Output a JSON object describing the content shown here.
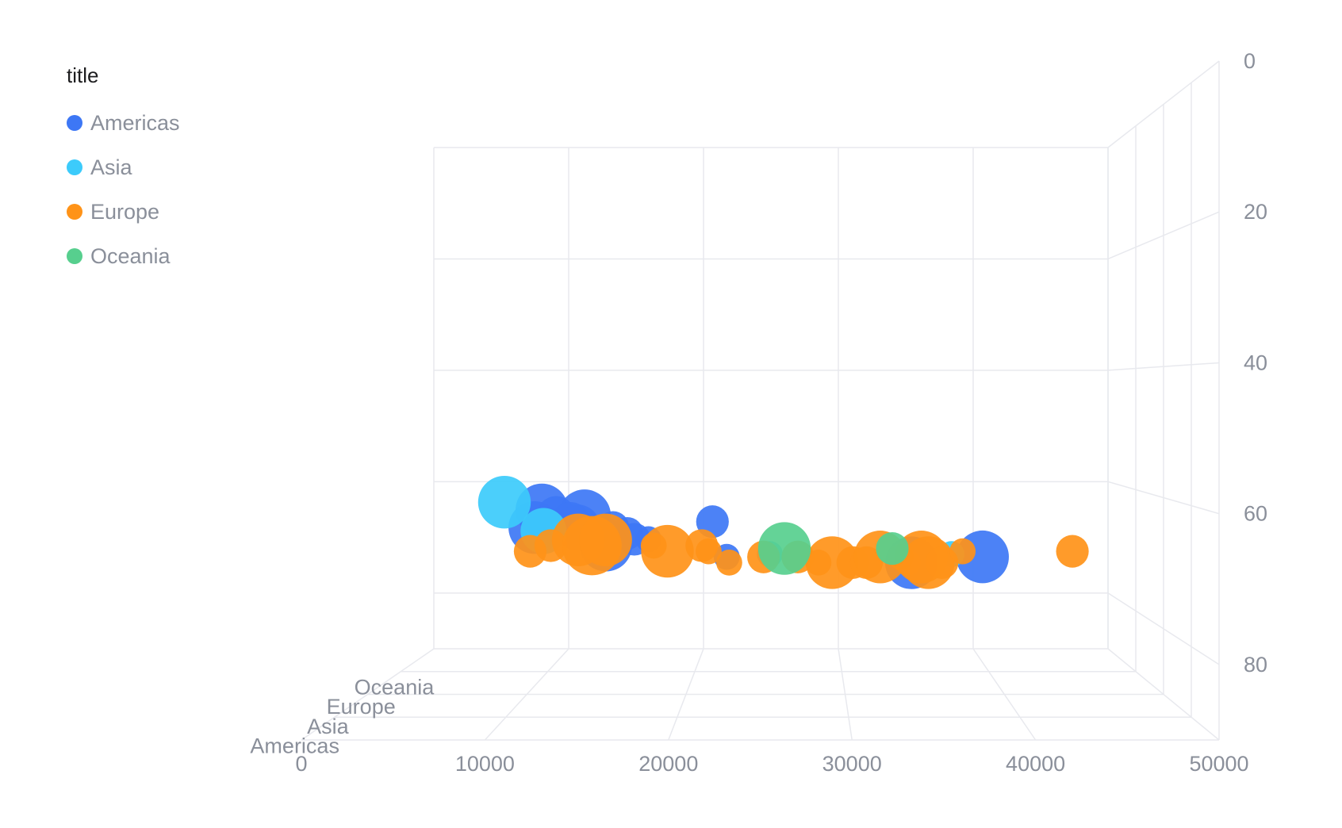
{
  "legend": {
    "title": "title",
    "items": [
      {
        "name": "Americas",
        "color": "#3d77f5"
      },
      {
        "name": "Asia",
        "color": "#3ccbfb"
      },
      {
        "name": "Europe",
        "color": "#ff9318"
      },
      {
        "name": "Oceania",
        "color": "#57cf8e"
      }
    ]
  },
  "chart_data": {
    "type": "scatter",
    "title": "",
    "x_axis": {
      "label": "",
      "range": [
        0,
        50000
      ],
      "ticks": [
        0,
        10000,
        20000,
        30000,
        40000,
        50000
      ]
    },
    "y_axis": {
      "label": "",
      "range": [
        0,
        90
      ],
      "ticks": [
        0,
        20,
        40,
        60,
        80
      ],
      "reversed": true
    },
    "z_axis": {
      "label": "",
      "categories": [
        "Americas",
        "Asia",
        "Europe",
        "Oceania"
      ]
    },
    "size_field": "population",
    "series": [
      {
        "name": "Americas",
        "color": "#3d77f5",
        "points": [
          {
            "x": 9000,
            "y": 64,
            "size": 6
          },
          {
            "x": 8500,
            "y": 67,
            "size": 6
          },
          {
            "x": 12000,
            "y": 65,
            "size": 6
          },
          {
            "x": 11500,
            "y": 67,
            "size": 5
          },
          {
            "x": 10000,
            "y": 65,
            "size": 4
          },
          {
            "x": 11000,
            "y": 66,
            "size": 4
          },
          {
            "x": 14000,
            "y": 67,
            "size": 3
          },
          {
            "x": 15000,
            "y": 68,
            "size": 3
          },
          {
            "x": 13500,
            "y": 70,
            "size": 6
          },
          {
            "x": 15500,
            "y": 69,
            "size": 3
          },
          {
            "x": 16500,
            "y": 69,
            "size": 2
          },
          {
            "x": 14000,
            "y": 69,
            "size": 2
          },
          {
            "x": 13000,
            "y": 70,
            "size": 2
          },
          {
            "x": 21000,
            "y": 66,
            "size": 3
          },
          {
            "x": 22000,
            "y": 72,
            "size": 2
          },
          {
            "x": 35000,
            "y": 73,
            "size": 6
          },
          {
            "x": 40000,
            "y": 72,
            "size": 6
          }
        ]
      },
      {
        "name": "Asia",
        "color": "#3ccbfb",
        "points": [
          {
            "x": 6000,
            "y": 63,
            "size": 6
          },
          {
            "x": 8800,
            "y": 68,
            "size": 5
          },
          {
            "x": 25000,
            "y": 72,
            "size": 2
          },
          {
            "x": 38000,
            "y": 72,
            "size": 2
          }
        ]
      },
      {
        "name": "Europe",
        "color": "#ff9318",
        "points": [
          {
            "x": 7500,
            "y": 72,
            "size": 3
          },
          {
            "x": 9000,
            "y": 71,
            "size": 3
          },
          {
            "x": 11000,
            "y": 70,
            "size": 6
          },
          {
            "x": 12000,
            "y": 71,
            "size": 7
          },
          {
            "x": 13000,
            "y": 70,
            "size": 6
          },
          {
            "x": 16500,
            "y": 71,
            "size": 2
          },
          {
            "x": 17500,
            "y": 72,
            "size": 6
          },
          {
            "x": 20000,
            "y": 71,
            "size": 3
          },
          {
            "x": 20500,
            "y": 72,
            "size": 2
          },
          {
            "x": 22000,
            "y": 74,
            "size": 2
          },
          {
            "x": 24500,
            "y": 73,
            "size": 3
          },
          {
            "x": 27000,
            "y": 73,
            "size": 3
          },
          {
            "x": 28500,
            "y": 74,
            "size": 2
          },
          {
            "x": 29500,
            "y": 74,
            "size": 6
          },
          {
            "x": 31000,
            "y": 74,
            "size": 3
          },
          {
            "x": 32000,
            "y": 74,
            "size": 3
          },
          {
            "x": 33000,
            "y": 73,
            "size": 6
          },
          {
            "x": 34500,
            "y": 73,
            "size": 2
          },
          {
            "x": 35000,
            "y": 74,
            "size": 2
          },
          {
            "x": 36000,
            "y": 73,
            "size": 6
          },
          {
            "x": 36500,
            "y": 74,
            "size": 6
          },
          {
            "x": 37500,
            "y": 74,
            "size": 3
          },
          {
            "x": 39000,
            "y": 72,
            "size": 2
          },
          {
            "x": 47000,
            "y": 72,
            "size": 3
          }
        ]
      },
      {
        "name": "Oceania",
        "color": "#57cf8e",
        "points": [
          {
            "x": 26000,
            "y": 72,
            "size": 6
          },
          {
            "x": 34000,
            "y": 72,
            "size": 3
          }
        ]
      }
    ]
  }
}
